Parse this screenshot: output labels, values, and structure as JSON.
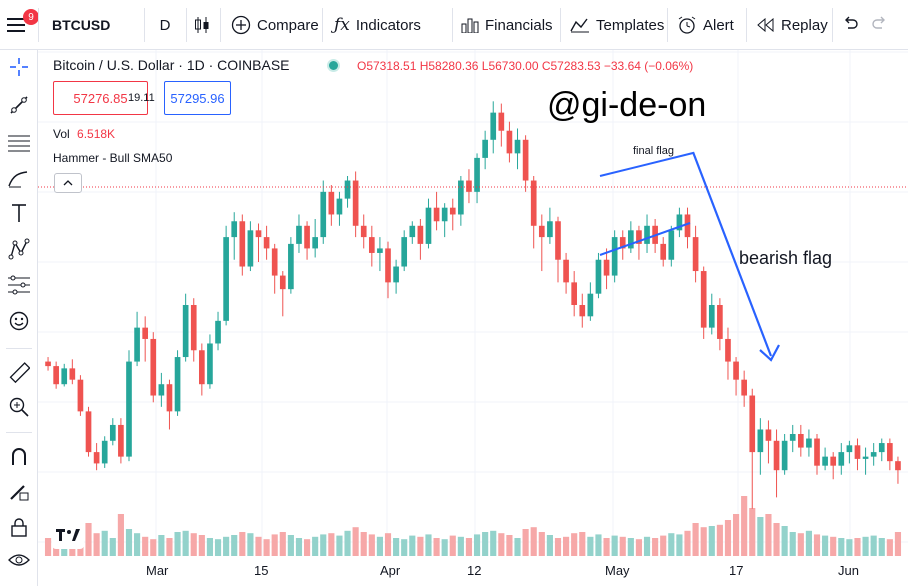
{
  "topbar": {
    "alert_count": "9",
    "symbol": "BTCUSD",
    "interval": "D",
    "compare": "Compare",
    "indicators": "Indicators",
    "financials": "Financials",
    "templates": "Templates",
    "alert": "Alert",
    "replay": "Replay"
  },
  "legend": {
    "title": "Bitcoin / U.S. Dollar · 1D · COINBASE",
    "ohlc": "O57318.51 H58280.36 L56730.00 C57283.53 −33.64 (−0.06%)",
    "sell": "57276.85",
    "spread": "19.11",
    "buy": "57295.96",
    "vol_label": "Vol",
    "vol_value": "6.518K",
    "indicator": "Hammer - Bull SMA50"
  },
  "watermark": "@gi-de-on",
  "annotations": {
    "final_flag": "final flag",
    "bearish_flag": "bearish flag"
  },
  "xaxis": [
    "Mar",
    "15",
    "Apr",
    "12",
    "May",
    "17",
    "Jun"
  ],
  "colors": {
    "up": "#26a69a",
    "down": "#ef5350",
    "vol_up": "#93d2cb",
    "vol_down": "#f6a8a8",
    "drawing": "#2962ff"
  },
  "chart_data": {
    "type": "candlestick",
    "candles": [
      [
        0.7,
        0.68,
        0.66,
        0.72
      ],
      [
        0.68,
        0.6,
        0.58,
        0.7
      ],
      [
        0.6,
        0.67,
        0.59,
        0.69
      ],
      [
        0.67,
        0.62,
        0.6,
        0.71
      ],
      [
        0.62,
        0.48,
        0.46,
        0.64
      ],
      [
        0.48,
        0.3,
        0.28,
        0.5
      ],
      [
        0.3,
        0.25,
        0.22,
        0.34
      ],
      [
        0.25,
        0.35,
        0.23,
        0.37
      ],
      [
        0.35,
        0.42,
        0.33,
        0.45
      ],
      [
        0.42,
        0.28,
        0.25,
        0.45
      ],
      [
        0.28,
        0.7,
        0.26,
        0.75
      ],
      [
        0.7,
        0.85,
        0.68,
        0.92
      ],
      [
        0.85,
        0.8,
        0.7,
        0.9
      ],
      [
        0.8,
        0.55,
        0.52,
        0.83
      ],
      [
        0.55,
        0.6,
        0.5,
        0.65
      ],
      [
        0.6,
        0.48,
        0.4,
        0.62
      ],
      [
        0.48,
        0.72,
        0.46,
        0.75
      ],
      [
        0.72,
        0.95,
        0.7,
        1.0
      ],
      [
        0.95,
        0.75,
        0.7,
        0.98
      ],
      [
        0.75,
        0.6,
        0.55,
        0.78
      ],
      [
        0.6,
        0.78,
        0.58,
        0.82
      ],
      [
        0.78,
        0.88,
        0.75,
        0.92
      ],
      [
        0.88,
        1.25,
        0.86,
        1.3
      ],
      [
        1.25,
        1.32,
        1.15,
        1.36
      ],
      [
        1.32,
        1.12,
        1.08,
        1.35
      ],
      [
        1.12,
        1.28,
        1.1,
        1.32
      ],
      [
        1.28,
        1.25,
        1.14,
        1.31
      ],
      [
        1.25,
        1.2,
        1.15,
        1.3
      ],
      [
        1.2,
        1.08,
        1.0,
        1.22
      ],
      [
        1.08,
        1.02,
        0.9,
        1.1
      ],
      [
        1.02,
        1.22,
        1.0,
        1.25
      ],
      [
        1.22,
        1.3,
        1.18,
        1.35
      ],
      [
        1.3,
        1.2,
        1.15,
        1.32
      ],
      [
        1.2,
        1.25,
        1.16,
        1.33
      ],
      [
        1.25,
        1.45,
        1.22,
        1.5
      ],
      [
        1.45,
        1.35,
        1.3,
        1.48
      ],
      [
        1.35,
        1.42,
        1.3,
        1.45
      ],
      [
        1.42,
        1.5,
        1.38,
        1.52
      ],
      [
        1.5,
        1.3,
        1.25,
        1.54
      ],
      [
        1.3,
        1.25,
        1.2,
        1.35
      ],
      [
        1.25,
        1.18,
        1.12,
        1.3
      ],
      [
        1.18,
        1.2,
        1.1,
        1.25
      ],
      [
        1.2,
        1.05,
        0.98,
        1.23
      ],
      [
        1.05,
        1.12,
        1.0,
        1.15
      ],
      [
        1.12,
        1.25,
        1.1,
        1.28
      ],
      [
        1.25,
        1.3,
        1.22,
        1.32
      ],
      [
        1.3,
        1.22,
        1.15,
        1.33
      ],
      [
        1.22,
        1.38,
        1.2,
        1.42
      ],
      [
        1.38,
        1.32,
        1.28,
        1.45
      ],
      [
        1.32,
        1.38,
        1.25,
        1.4
      ],
      [
        1.38,
        1.35,
        1.28,
        1.42
      ],
      [
        1.35,
        1.5,
        1.3,
        1.52
      ],
      [
        1.5,
        1.45,
        1.4,
        1.55
      ],
      [
        1.45,
        1.6,
        1.4,
        1.62
      ],
      [
        1.6,
        1.68,
        1.55,
        1.72
      ],
      [
        1.68,
        1.8,
        1.62,
        1.85
      ],
      [
        1.8,
        1.72,
        1.65,
        1.84
      ],
      [
        1.72,
        1.62,
        1.58,
        1.76
      ],
      [
        1.62,
        1.68,
        1.55,
        1.73
      ],
      [
        1.68,
        1.5,
        1.45,
        1.7
      ],
      [
        1.5,
        1.3,
        1.2,
        1.52
      ],
      [
        1.3,
        1.25,
        1.1,
        1.35
      ],
      [
        1.25,
        1.32,
        1.22,
        1.38
      ],
      [
        1.32,
        1.15,
        1.05,
        1.34
      ],
      [
        1.15,
        1.05,
        1.0,
        1.18
      ],
      [
        1.05,
        0.95,
        0.9,
        1.1
      ],
      [
        0.95,
        0.9,
        0.85,
        1.0
      ],
      [
        0.9,
        1.0,
        0.88,
        1.05
      ],
      [
        1.0,
        1.15,
        0.98,
        1.18
      ],
      [
        1.15,
        1.08,
        1.02,
        1.2
      ],
      [
        1.08,
        1.25,
        1.05,
        1.28
      ],
      [
        1.25,
        1.2,
        1.15,
        1.28
      ],
      [
        1.2,
        1.28,
        1.18,
        1.32
      ],
      [
        1.28,
        1.22,
        1.15,
        1.3
      ],
      [
        1.22,
        1.3,
        1.18,
        1.35
      ],
      [
        1.3,
        1.22,
        1.18,
        1.33
      ],
      [
        1.22,
        1.15,
        1.12,
        1.25
      ],
      [
        1.15,
        1.28,
        1.12,
        1.3
      ],
      [
        1.28,
        1.35,
        1.25,
        1.38
      ],
      [
        1.35,
        1.25,
        1.2,
        1.38
      ],
      [
        1.25,
        1.1,
        1.05,
        1.3
      ],
      [
        1.1,
        0.85,
        0.8,
        1.12
      ],
      [
        0.85,
        0.95,
        0.82,
        1.0
      ],
      [
        0.95,
        0.8,
        0.75,
        0.98
      ],
      [
        0.8,
        0.7,
        0.62,
        0.85
      ],
      [
        0.7,
        0.62,
        0.55,
        0.72
      ],
      [
        0.62,
        0.55,
        0.5,
        0.66
      ],
      [
        0.55,
        0.3,
        0.05,
        0.58
      ],
      [
        0.3,
        0.4,
        0.2,
        0.45
      ],
      [
        0.4,
        0.35,
        0.25,
        0.44
      ],
      [
        0.35,
        0.22,
        0.1,
        0.4
      ],
      [
        0.22,
        0.35,
        0.2,
        0.38
      ],
      [
        0.35,
        0.38,
        0.3,
        0.42
      ],
      [
        0.38,
        0.32,
        0.28,
        0.42
      ],
      [
        0.32,
        0.36,
        0.28,
        0.4
      ],
      [
        0.36,
        0.24,
        0.2,
        0.38
      ],
      [
        0.24,
        0.28,
        0.22,
        0.32
      ],
      [
        0.28,
        0.24,
        0.18,
        0.3
      ],
      [
        0.24,
        0.3,
        0.2,
        0.34
      ],
      [
        0.3,
        0.33,
        0.25,
        0.35
      ],
      [
        0.33,
        0.27,
        0.22,
        0.36
      ],
      [
        0.27,
        0.28,
        0.2,
        0.32
      ],
      [
        0.28,
        0.3,
        0.24,
        0.34
      ],
      [
        0.3,
        0.34,
        0.26,
        0.36
      ],
      [
        0.34,
        0.26,
        0.22,
        0.36
      ],
      [
        0.26,
        0.22,
        0.16,
        0.28
      ]
    ],
    "volumes": [
      0.3,
      0.35,
      0.25,
      0.4,
      0.45,
      0.55,
      0.38,
      0.42,
      0.3,
      0.7,
      0.45,
      0.38,
      0.32,
      0.28,
      0.35,
      0.3,
      0.4,
      0.42,
      0.38,
      0.35,
      0.3,
      0.28,
      0.32,
      0.35,
      0.4,
      0.38,
      0.32,
      0.28,
      0.36,
      0.4,
      0.35,
      0.3,
      0.28,
      0.32,
      0.36,
      0.38,
      0.34,
      0.42,
      0.48,
      0.4,
      0.36,
      0.32,
      0.38,
      0.3,
      0.28,
      0.34,
      0.32,
      0.36,
      0.3,
      0.28,
      0.34,
      0.32,
      0.3,
      0.36,
      0.4,
      0.42,
      0.38,
      0.35,
      0.3,
      0.45,
      0.48,
      0.4,
      0.35,
      0.3,
      0.32,
      0.38,
      0.4,
      0.32,
      0.36,
      0.3,
      0.34,
      0.32,
      0.3,
      0.28,
      0.32,
      0.3,
      0.34,
      0.38,
      0.36,
      0.42,
      0.55,
      0.48,
      0.5,
      0.52,
      0.6,
      0.7,
      1.0,
      0.8,
      0.65,
      0.7,
      0.55,
      0.5,
      0.4,
      0.38,
      0.42,
      0.36,
      0.34,
      0.32,
      0.3,
      0.28,
      0.3,
      0.32,
      0.34,
      0.3,
      0.28,
      0.4
    ]
  }
}
